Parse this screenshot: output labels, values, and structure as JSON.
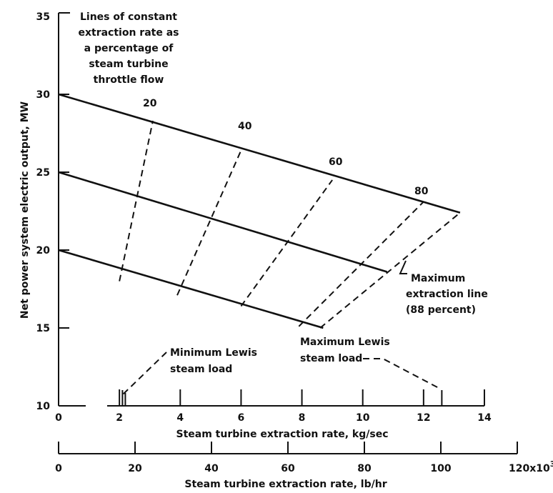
{
  "chart_data": {
    "type": "line",
    "ylabel": "Net power system electric output, MW",
    "xlabel": "Steam turbine extraction rate, kg/sec",
    "x2label": "Steam turbine extraction rate, lb/hr",
    "xlim": [
      0,
      14
    ],
    "ylim": [
      10,
      35
    ],
    "x2lim": [
      0,
      120
    ],
    "yticks": [
      "10",
      "15",
      "20",
      "25",
      "30",
      "35"
    ],
    "xticks": [
      "0",
      "2",
      "4",
      "6",
      "8",
      "10",
      "12",
      "14"
    ],
    "x2ticks": [
      "0",
      "20",
      "40",
      "60",
      "80",
      "100",
      "120x10"
    ],
    "x2_exponent": "3",
    "series": [
      {
        "style": "solid",
        "x": [
          0,
          13.2
        ],
        "y": [
          30.0,
          22.4
        ]
      },
      {
        "style": "solid",
        "x": [
          0,
          10.8
        ],
        "y": [
          25.0,
          18.6
        ]
      },
      {
        "style": "solid",
        "x": [
          0,
          8.7
        ],
        "y": [
          20.0,
          15.0
        ]
      },
      {
        "name": "20",
        "style": "dashed",
        "x": [
          2.0,
          3.1
        ],
        "y": [
          18.0,
          28.3
        ]
      },
      {
        "name": "40",
        "style": "dashed",
        "x": [
          3.9,
          6.0
        ],
        "y": [
          17.1,
          26.4
        ]
      },
      {
        "name": "60",
        "style": "dashed",
        "x": [
          6.0,
          9.0
        ],
        "y": [
          16.4,
          24.5
        ]
      },
      {
        "name": "80",
        "style": "dashed",
        "x": [
          7.9,
          12.0
        ],
        "y": [
          15.1,
          23.1
        ]
      },
      {
        "name": "Maximum extraction line (88 percent)",
        "style": "dashed",
        "x": [
          8.6,
          13.2
        ],
        "y": [
          15.0,
          22.4
        ]
      }
    ],
    "curve_labels": [
      "20",
      "40",
      "60",
      "80"
    ],
    "annotations": {
      "constant_lines_note": [
        "Lines of constant",
        "extraction rate as",
        "a percentage of",
        "steam turbine",
        "throttle flow"
      ],
      "max_extraction": [
        "Maximum",
        "extraction line",
        "(88 percent)"
      ],
      "min_lewis": [
        "Minimum Lewis",
        "steam load"
      ],
      "max_lewis": [
        "Maximum Lewis",
        "steam load"
      ]
    },
    "markers": [
      {
        "name": "Minimum Lewis steam load",
        "x": 2.1
      },
      {
        "name": "Maximum Lewis steam load",
        "x": 12.6
      }
    ],
    "grid": false
  }
}
